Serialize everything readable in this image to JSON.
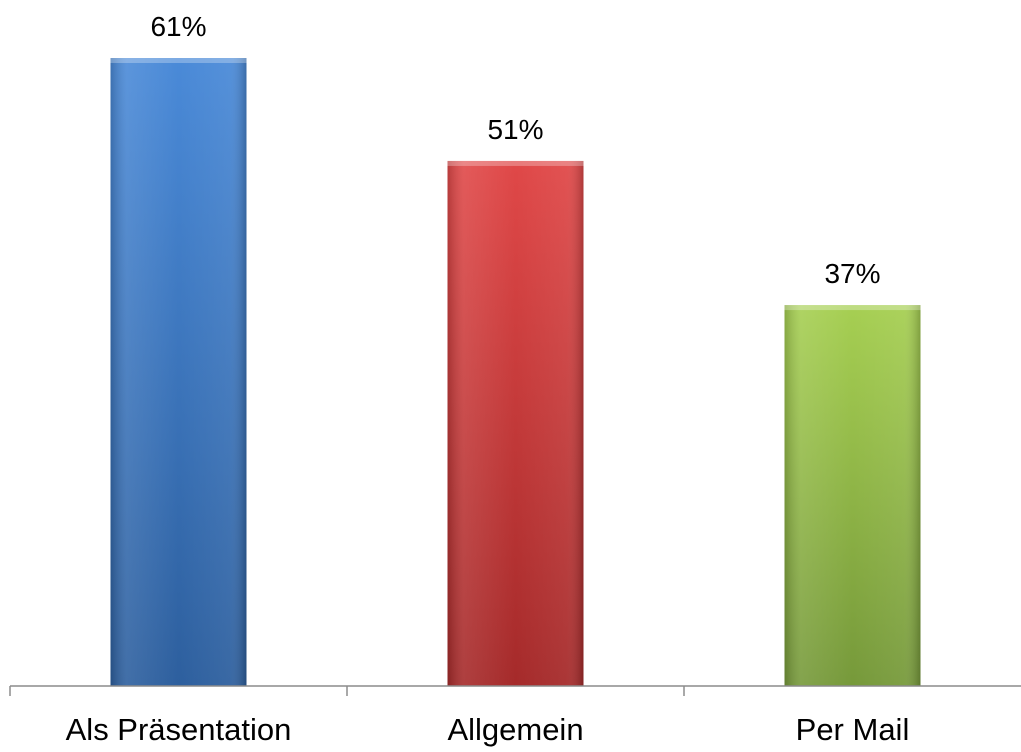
{
  "chart_data": {
    "type": "bar",
    "title": "",
    "xlabel": "",
    "ylabel": "",
    "categories": [
      "Als Präsentation",
      "Allgemein",
      "Per Mail"
    ],
    "values": [
      61,
      51,
      37
    ],
    "data_labels": [
      "61%",
      "51%",
      "37%"
    ],
    "value_unit": "%",
    "ylim": [
      0,
      61
    ],
    "grid": false,
    "legend": "none",
    "y_axis_visible": false,
    "colors": [
      "#3a74c4",
      "#c83636",
      "#8fb83a"
    ]
  }
}
